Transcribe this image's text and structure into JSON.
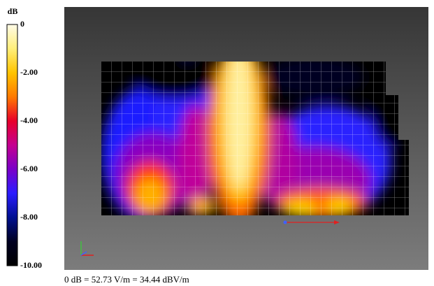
{
  "colorbar": {
    "unit": "dB",
    "labels": [
      "0",
      "-2.00",
      "-4.00",
      "-6.00",
      "-8.00",
      "-10.00"
    ]
  },
  "caption": "0 dB = 52.73 V/m = 34.44 dBV/m"
}
